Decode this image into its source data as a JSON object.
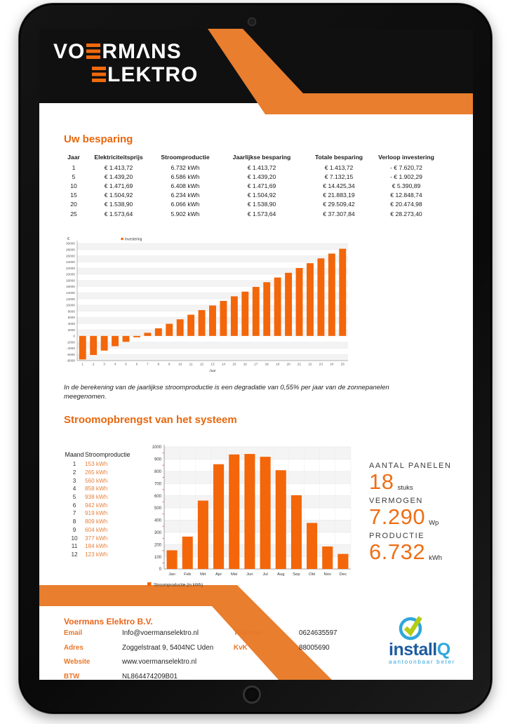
{
  "colors": {
    "accent": "#e8670e",
    "bar": "#f3660a",
    "band": "#e87e2e",
    "header_black": "#101010",
    "cert_dark_blue": "#1e5c9f",
    "cert_light_blue": "#2fa7dc",
    "cert_green": "#b4cc16"
  },
  "brand": {
    "line1_pre": "VO",
    "line1_post": "RMΛNS",
    "line2_post": "LEKTRO"
  },
  "savings": {
    "title": "Uw besparing",
    "table": {
      "headers": [
        "Jaar",
        "Elektriciteitsprijs",
        "Stroomproductie",
        "Jaarlijkse besparing",
        "Totale besparing",
        "Verloop investering"
      ],
      "rows": [
        [
          "1",
          "€ 1.413,72",
          "6.732 kWh",
          "€ 1.413,72",
          "€ 1.413,72",
          "- € 7.620,72"
        ],
        [
          "5",
          "€ 1.439,20",
          "6.586 kWh",
          "€ 1.439,20",
          "€ 7.132,15",
          "- € 1.902,29"
        ],
        [
          "10",
          "€ 1.471,69",
          "6.408 kWh",
          "€ 1.471,69",
          "€ 14.425,34",
          "€ 5.390,89"
        ],
        [
          "15",
          "€ 1.504,92",
          "6.234 kWh",
          "€ 1.504,92",
          "€ 21.883,19",
          "€ 12.848,74"
        ],
        [
          "20",
          "€ 1.538,90",
          "6.066 kWh",
          "€ 1.538,90",
          "€ 29.509,42",
          "€ 20.474,98"
        ],
        [
          "25",
          "€ 1.573,64",
          "5.902 kWh",
          "€ 1.573,64",
          "€ 37.307,84",
          "€ 28.273,40"
        ]
      ]
    },
    "note": "In de berekening van de jaarlijkse stroomproductie is een degradatie van 0,55% per jaar van de zonnepanelen meegenomen."
  },
  "yield": {
    "title": "Stroomopbrengst van het systeem",
    "table": {
      "headers": [
        "Maand",
        "Stroomproductie"
      ],
      "rows": [
        [
          "1",
          "153 kWh"
        ],
        [
          "2",
          "265 kWh"
        ],
        [
          "3",
          "560 kWh"
        ],
        [
          "4",
          "858 kWh"
        ],
        [
          "5",
          "938 kWh"
        ],
        [
          "6",
          "942 kWh"
        ],
        [
          "7",
          "919 kWh"
        ],
        [
          "8",
          "809 kWh"
        ],
        [
          "9",
          "604 kWh"
        ],
        [
          "10",
          "377 kWh"
        ],
        [
          "11",
          "184 kWh"
        ],
        [
          "12",
          "123 kWh"
        ]
      ]
    },
    "stats": [
      {
        "label": "AANTAL PANELEN",
        "value": "18",
        "unit": "stuks"
      },
      {
        "label": "VERMOGEN",
        "value": "7.290",
        "unit": "Wp"
      },
      {
        "label": "PRODUCTIE",
        "value": "6.732",
        "unit": "kWh"
      }
    ]
  },
  "chart_data": [
    {
      "type": "bar",
      "title": "",
      "ylabel": "€",
      "xlabel": "Jaar",
      "legend": "Investering",
      "legend_position": "top",
      "grid": true,
      "ylim": [
        -8000,
        30000
      ],
      "ytick_step": 2000,
      "x": [
        1,
        2,
        3,
        4,
        5,
        6,
        7,
        8,
        9,
        10,
        11,
        12,
        13,
        14,
        15,
        16,
        17,
        18,
        19,
        20,
        21,
        22,
        23,
        24,
        25
      ],
      "values": [
        -7620.72,
        -6191,
        -4761,
        -3332,
        -1902.29,
        -444,
        1015,
        2473,
        3932,
        5390.89,
        6882,
        8373,
        9865,
        11357,
        12848.74,
        14374,
        15899,
        17424,
        18950,
        20474.98,
        22035,
        23595,
        25155,
        26714,
        28273.4
      ]
    },
    {
      "type": "bar",
      "title": "",
      "ylabel": "",
      "xlabel": "",
      "legend": "Stroomproductie (in kWh)",
      "legend_position": "bottom",
      "grid": true,
      "ylim": [
        0,
        1000
      ],
      "ytick_step": 100,
      "categories": [
        "Jan",
        "Feb",
        "Mrt",
        "Apr",
        "Mei",
        "Jun",
        "Jul",
        "Aug",
        "Sep",
        "Okt",
        "Nov",
        "Dec"
      ],
      "values": [
        153,
        265,
        560,
        858,
        938,
        942,
        919,
        809,
        604,
        377,
        184,
        123
      ]
    }
  ],
  "footer": {
    "company": "Voermans Elektro B.V.",
    "left_rows": [
      [
        "Email",
        "Info@voermanselektro.nl"
      ],
      [
        "Adres",
        "Zoggelstraat 9, 5404NC Uden"
      ],
      [
        "Website",
        "www.voermanselektro.nl"
      ],
      [
        "BTW",
        "NL864474209B01"
      ]
    ],
    "right_rows": [
      [
        "Telefoon",
        "0624635597"
      ],
      [
        "KvK",
        "88005690"
      ]
    ],
    "cert": {
      "name_dark": "install",
      "name_light": "Q",
      "tagline": "aantoonbaar beter"
    }
  }
}
